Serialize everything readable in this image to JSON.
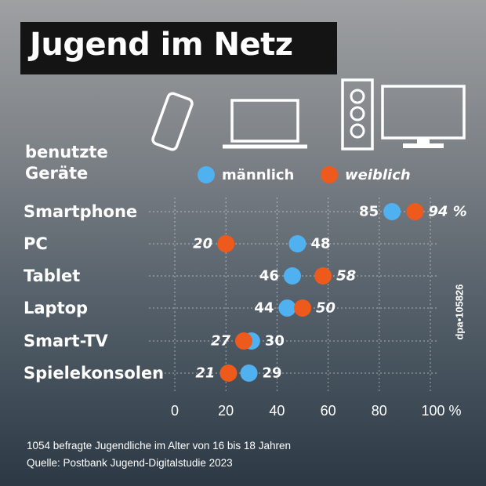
{
  "title": "Jugend im Netz",
  "devices_label_line1": "benutzte",
  "devices_label_line2": "Geräte",
  "legend": {
    "male": "männlich",
    "female": "weiblich"
  },
  "icons": [
    "smartphone-icon",
    "laptop-icon",
    "pc-tower-icon",
    "monitor-icon"
  ],
  "colors": {
    "male": "#4fb1f0",
    "female": "#ee5a1c",
    "title_bg": "#141414",
    "text": "#ffffff"
  },
  "x_tick_labels": [
    "0",
    "20",
    "40",
    "60",
    "80",
    "100 %"
  ],
  "chart_data": {
    "type": "scatter",
    "categories": [
      "Smartphone",
      "PC",
      "Tablet",
      "Laptop",
      "Smart-TV",
      "Spielekonsolen"
    ],
    "series": [
      {
        "name": "männlich",
        "values": [
          85,
          48,
          46,
          44,
          30,
          29
        ],
        "labels": [
          "85",
          "48",
          "46",
          "44",
          "30",
          "29"
        ]
      },
      {
        "name": "weiblich",
        "values": [
          94,
          20,
          58,
          50,
          27,
          21
        ],
        "labels": [
          "94 %",
          "20",
          "58",
          "50",
          "27",
          "21"
        ]
      }
    ],
    "xlim": [
      0,
      100
    ],
    "x_ticks": [
      0,
      20,
      40,
      60,
      80,
      100
    ],
    "grid": true,
    "legend": "top"
  },
  "footnote": "1054 befragte Jugendliche im Alter von 16 bis 18 Jahren",
  "source": "Quelle: Postbank Jugend-Digitalstudie 2023",
  "credit": "dpa•105826"
}
